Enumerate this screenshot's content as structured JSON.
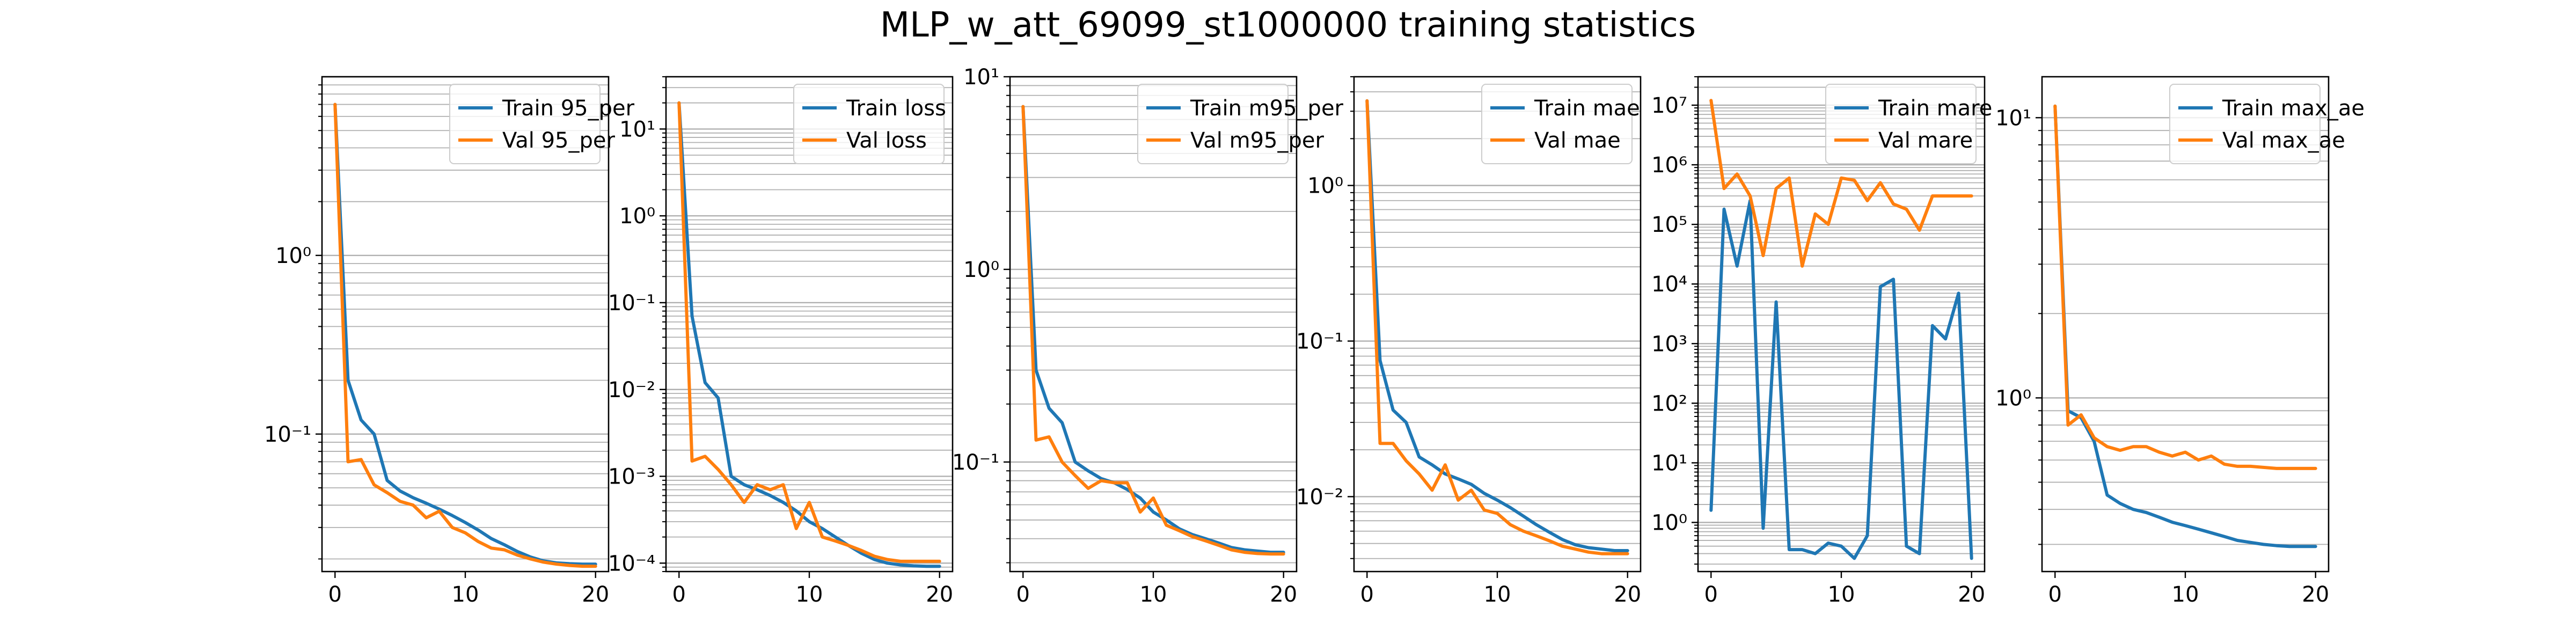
{
  "figure": {
    "title": "MLP_w_att_69099_st1000000 training statistics"
  },
  "colors": {
    "train": "#1f77b4",
    "val": "#ff7f0e",
    "grid": "#b0b0b0",
    "axes": "#000000",
    "background": "#ffffff"
  },
  "chart_data": [
    {
      "type": "line",
      "yscale": "log",
      "grid": "y-major-and-minor",
      "legend_position": "upper right",
      "xlim": [
        -1,
        21
      ],
      "ylim": [
        0.017,
        10
      ],
      "x_ticks": [
        0,
        10,
        20
      ],
      "x_tick_labels": [
        "0",
        "10",
        "20"
      ],
      "y_ticks": [
        0.1,
        1
      ],
      "y_tick_labels": [
        "10⁻¹",
        "10⁰"
      ],
      "x": [
        0,
        1,
        2,
        3,
        4,
        5,
        6,
        7,
        8,
        9,
        10,
        11,
        12,
        13,
        14,
        15,
        16,
        17,
        18,
        19,
        20
      ],
      "series": [
        {
          "name": "Train 95_per",
          "color_key": "train",
          "values": [
            7,
            0.2,
            0.12,
            0.1,
            0.055,
            0.048,
            0.044,
            0.041,
            0.038,
            0.035,
            0.032,
            0.029,
            0.026,
            0.024,
            0.022,
            0.0205,
            0.0195,
            0.019,
            0.0188,
            0.0187,
            0.0187
          ]
        },
        {
          "name": "Val 95_per",
          "color_key": "val",
          "values": [
            7,
            0.07,
            0.072,
            0.052,
            0.047,
            0.042,
            0.04,
            0.034,
            0.037,
            0.03,
            0.028,
            0.025,
            0.023,
            0.0225,
            0.021,
            0.02,
            0.0192,
            0.0187,
            0.0184,
            0.0182,
            0.0182
          ]
        }
      ]
    },
    {
      "type": "line",
      "yscale": "log",
      "grid": "y-major-and-minor",
      "legend_position": "upper right",
      "xlim": [
        -1,
        21
      ],
      "ylim": [
        8e-05,
        40
      ],
      "x_ticks": [
        0,
        10,
        20
      ],
      "x_tick_labels": [
        "0",
        "10",
        "20"
      ],
      "y_ticks": [
        0.0001,
        0.001,
        0.01,
        0.1,
        1,
        10
      ],
      "y_tick_labels": [
        "10⁻⁴",
        "10⁻³",
        "10⁻²",
        "10⁻¹",
        "10⁰",
        "10¹"
      ],
      "x": [
        0,
        1,
        2,
        3,
        4,
        5,
        6,
        7,
        8,
        9,
        10,
        11,
        12,
        13,
        14,
        15,
        16,
        17,
        18,
        19,
        20
      ],
      "series": [
        {
          "name": "Train loss",
          "color_key": "train",
          "values": [
            20,
            0.07,
            0.012,
            0.008,
            0.001,
            0.0008,
            0.0007,
            0.0006,
            0.0005,
            0.0004,
            0.0003,
            0.00025,
            0.0002,
            0.00016,
            0.00013,
            0.00011,
            0.0001,
            9.55e-05,
            9.3e-05,
            9.2e-05,
            9.2e-05
          ]
        },
        {
          "name": "Val loss",
          "color_key": "val",
          "values": [
            20,
            0.0015,
            0.0017,
            0.0012,
            0.0008,
            0.0005,
            0.0008,
            0.0007,
            0.0008,
            0.00025,
            0.0005,
            0.0002,
            0.00018,
            0.00016,
            0.00014,
            0.00012,
            0.00011,
            0.000105,
            0.000105,
            0.000105,
            0.000105
          ]
        }
      ]
    },
    {
      "type": "line",
      "yscale": "log",
      "grid": "y-major-and-minor",
      "legend_position": "upper right",
      "xlim": [
        -1,
        21
      ],
      "ylim": [
        0.027,
        10
      ],
      "x_ticks": [
        0,
        10,
        20
      ],
      "x_tick_labels": [
        "0",
        "10",
        "20"
      ],
      "y_ticks": [
        0.1,
        1,
        10
      ],
      "y_tick_labels": [
        "10⁻¹",
        "10⁰",
        "10¹"
      ],
      "x": [
        0,
        1,
        2,
        3,
        4,
        5,
        6,
        7,
        8,
        9,
        10,
        11,
        12,
        13,
        14,
        15,
        16,
        17,
        18,
        19,
        20
      ],
      "series": [
        {
          "name": "Train m95_per",
          "color_key": "train",
          "values": [
            7,
            0.3,
            0.19,
            0.16,
            0.1,
            0.09,
            0.082,
            0.078,
            0.072,
            0.065,
            0.055,
            0.05,
            0.045,
            0.042,
            0.04,
            0.038,
            0.036,
            0.035,
            0.0345,
            0.034,
            0.034
          ]
        },
        {
          "name": "Val m95_per",
          "color_key": "val",
          "values": [
            7,
            0.13,
            0.135,
            0.1,
            0.085,
            0.073,
            0.08,
            0.078,
            0.078,
            0.055,
            0.065,
            0.047,
            0.044,
            0.041,
            0.039,
            0.037,
            0.035,
            0.034,
            0.0335,
            0.0333,
            0.0333
          ]
        }
      ]
    },
    {
      "type": "line",
      "yscale": "log",
      "grid": "y-major-and-minor",
      "legend_position": "upper right",
      "xlim": [
        -1,
        21
      ],
      "ylim": [
        0.0033,
        5
      ],
      "x_ticks": [
        0,
        10,
        20
      ],
      "x_tick_labels": [
        "0",
        "10",
        "20"
      ],
      "y_ticks": [
        0.01,
        0.1,
        1
      ],
      "y_tick_labels": [
        "10⁻²",
        "10⁻¹",
        "10⁰"
      ],
      "x": [
        0,
        1,
        2,
        3,
        4,
        5,
        6,
        7,
        8,
        9,
        10,
        11,
        12,
        13,
        14,
        15,
        16,
        17,
        18,
        19,
        20
      ],
      "series": [
        {
          "name": "Train mae",
          "color_key": "train",
          "values": [
            3.5,
            0.075,
            0.036,
            0.03,
            0.018,
            0.016,
            0.014,
            0.013,
            0.012,
            0.0105,
            0.0095,
            0.0085,
            0.0075,
            0.0066,
            0.0059,
            0.0053,
            0.0049,
            0.0047,
            0.0046,
            0.0045,
            0.0045
          ]
        },
        {
          "name": "Val mae",
          "color_key": "val",
          "values": [
            3.5,
            0.022,
            0.022,
            0.017,
            0.014,
            0.011,
            0.016,
            0.0095,
            0.011,
            0.0082,
            0.0078,
            0.0066,
            0.006,
            0.0056,
            0.0052,
            0.0048,
            0.0046,
            0.0044,
            0.0043,
            0.0043,
            0.0043
          ]
        }
      ]
    },
    {
      "type": "line",
      "yscale": "log",
      "grid": "y-major-and-minor",
      "legend_position": "upper right",
      "xlim": [
        -1,
        21
      ],
      "ylim": [
        0.15,
        30000000
      ],
      "x_ticks": [
        0,
        10,
        20
      ],
      "x_tick_labels": [
        "0",
        "10",
        "20"
      ],
      "y_ticks": [
        1,
        10,
        100,
        1000,
        10000,
        100000,
        1000000,
        10000000
      ],
      "y_tick_labels": [
        "10⁰",
        "10¹",
        "10²",
        "10³",
        "10⁴",
        "10⁵",
        "10⁶",
        "10⁷"
      ],
      "x": [
        0,
        1,
        2,
        3,
        4,
        5,
        6,
        7,
        8,
        9,
        10,
        11,
        12,
        13,
        14,
        15,
        16,
        17,
        18,
        19,
        20
      ],
      "series": [
        {
          "name": "Train mare",
          "color_key": "train",
          "values": [
            1.6,
            180000,
            20000,
            250000,
            0.8,
            5000,
            0.35,
            0.35,
            0.3,
            0.45,
            0.4,
            0.25,
            0.6,
            9000,
            12000,
            0.4,
            0.3,
            2000,
            1200,
            7000,
            0.25
          ]
        },
        {
          "name": "Val mare",
          "color_key": "val",
          "values": [
            12000000,
            400000,
            700000,
            300000,
            30000,
            400000,
            600000,
            20000,
            150000,
            100000,
            600000,
            550000,
            250000,
            500000,
            220000,
            180000,
            80000,
            300000,
            300000,
            300000,
            300000
          ]
        }
      ]
    },
    {
      "type": "line",
      "yscale": "log",
      "grid": "y-major-and-minor",
      "legend_position": "upper right",
      "xlim": [
        -1,
        21
      ],
      "ylim": [
        0.24,
        14
      ],
      "x_ticks": [
        0,
        10,
        20
      ],
      "x_tick_labels": [
        "0",
        "10",
        "20"
      ],
      "y_ticks": [
        1,
        10
      ],
      "y_tick_labels": [
        "10⁰",
        "10¹"
      ],
      "x": [
        0,
        1,
        2,
        3,
        4,
        5,
        6,
        7,
        8,
        9,
        10,
        11,
        12,
        13,
        14,
        15,
        16,
        17,
        18,
        19,
        20
      ],
      "series": [
        {
          "name": "Train max_ae",
          "color_key": "train",
          "values": [
            11,
            0.9,
            0.85,
            0.7,
            0.45,
            0.42,
            0.4,
            0.39,
            0.375,
            0.36,
            0.35,
            0.34,
            0.33,
            0.32,
            0.31,
            0.305,
            0.3,
            0.297,
            0.295,
            0.295,
            0.295
          ]
        },
        {
          "name": "Val max_ae",
          "color_key": "val",
          "values": [
            11,
            0.8,
            0.87,
            0.72,
            0.67,
            0.65,
            0.67,
            0.67,
            0.64,
            0.62,
            0.64,
            0.6,
            0.62,
            0.58,
            0.57,
            0.57,
            0.565,
            0.56,
            0.56,
            0.56,
            0.56
          ]
        }
      ]
    }
  ]
}
